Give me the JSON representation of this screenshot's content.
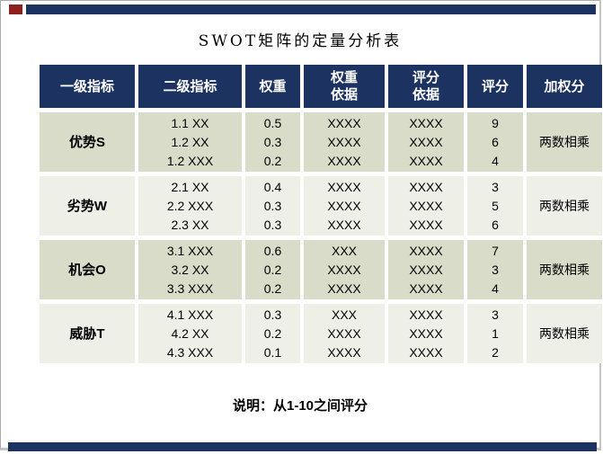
{
  "page": {
    "title": "SWOT矩阵的定量分析表",
    "note": "说明：从1-10之间评分"
  },
  "colors": {
    "header_bg": "#1c3361",
    "row_band_dark": "#d8dcc8",
    "row_band_light": "#eef0e8",
    "top_bottom_bar": "#1c3361",
    "red_mark": "#8e1f1f",
    "page_border": "#ababab"
  },
  "table": {
    "headers": [
      [
        "一级指标"
      ],
      [
        "二级指标"
      ],
      [
        "权重"
      ],
      [
        "权重",
        "依据"
      ],
      [
        "评分",
        "依据"
      ],
      [
        "评分"
      ],
      [
        "加权分"
      ]
    ],
    "rows": [
      {
        "category": "优势S",
        "items": [
          "1.1 XX",
          "1.2 XX",
          "1.2 XXX"
        ],
        "weights": [
          "0.5",
          "0.3",
          "0.2"
        ],
        "weight_basis": [
          "XXXX",
          "XXXX",
          "XXXX"
        ],
        "score_basis": [
          "XXXX",
          "XXXX",
          "XXXX"
        ],
        "scores": [
          "9",
          "6",
          "4"
        ],
        "weighted": "两数相乘"
      },
      {
        "category": "劣势W",
        "items": [
          "2.1 XX",
          "2.2 XXX",
          "2.3 XX"
        ],
        "weights": [
          "0.4",
          "0.3",
          "0.3"
        ],
        "weight_basis": [
          "XXXX",
          "XXXX",
          "XXXX"
        ],
        "score_basis": [
          "XXXX",
          "XXXX",
          "XXXX"
        ],
        "scores": [
          "3",
          "5",
          "6"
        ],
        "weighted": "两数相乘"
      },
      {
        "category": "机会O",
        "items": [
          "3.1 XXX",
          "3.2 XX",
          "3.3 XXX"
        ],
        "weights": [
          "0.6",
          "0.2",
          "0.2"
        ],
        "weight_basis": [
          "XXX",
          "XXXX",
          "XXXX"
        ],
        "score_basis": [
          "XXXX",
          "XXXX",
          "XXXX"
        ],
        "scores": [
          "7",
          "3",
          "4"
        ],
        "weighted": "两数相乘"
      },
      {
        "category": "威胁T",
        "items": [
          "4.1 XXX",
          "4.2 XX",
          "4.3 XXX"
        ],
        "weights": [
          "0.3",
          "0.2",
          "0.1"
        ],
        "weight_basis": [
          "XXX",
          "XXXX",
          "XXXX"
        ],
        "score_basis": [
          "XXXX",
          "XXXX",
          "XXXX"
        ],
        "scores": [
          "3",
          "1",
          "2"
        ],
        "weighted": "两数相乘"
      }
    ]
  }
}
